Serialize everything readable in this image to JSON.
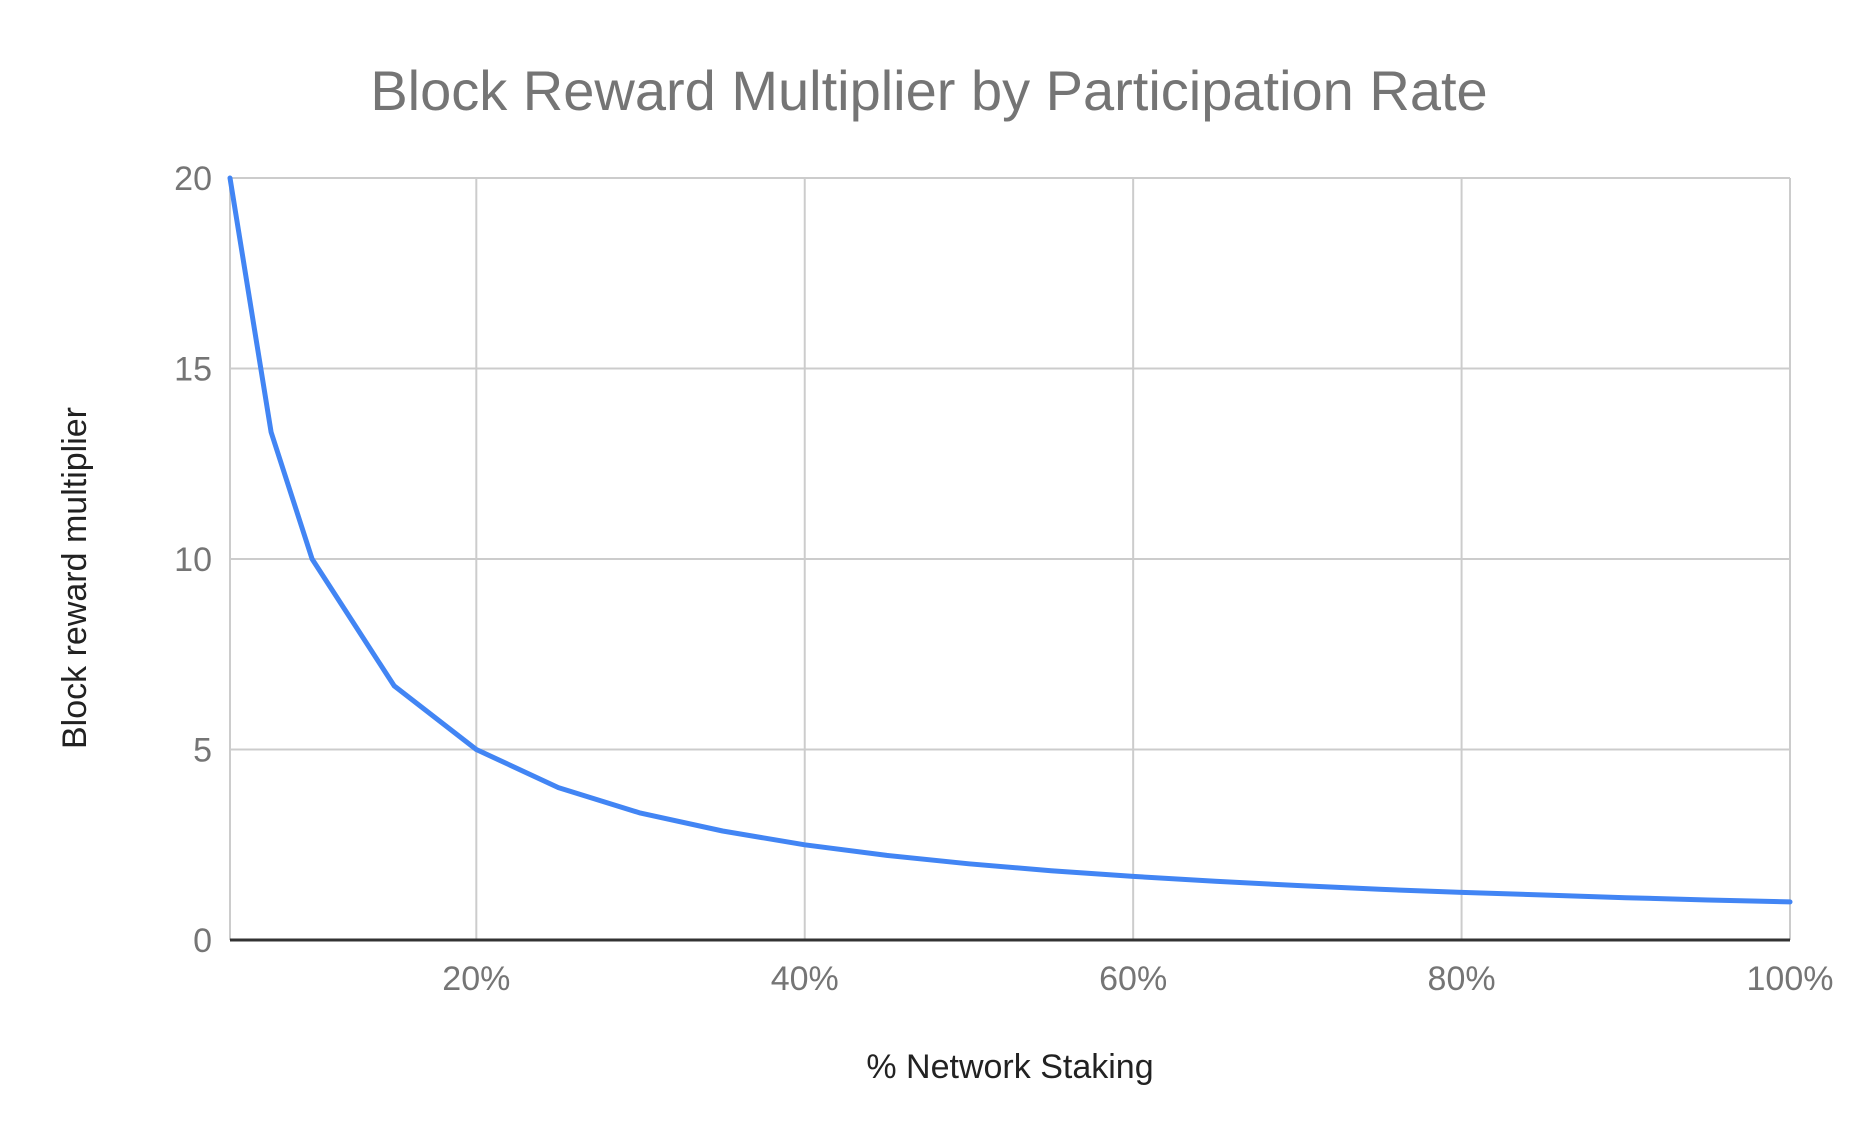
{
  "chart_data": {
    "type": "line",
    "title": "Block Reward Multiplier by Participation Rate",
    "xlabel": "% Network Staking",
    "ylabel": "Block reward multiplier",
    "x_unit": "percent",
    "xlim": [
      5,
      100
    ],
    "ylim": [
      0,
      20
    ],
    "x_ticks": [
      20,
      40,
      60,
      80,
      100
    ],
    "x_tick_labels": [
      "20%",
      "40%",
      "60%",
      "80%",
      "100%"
    ],
    "y_ticks": [
      0,
      5,
      10,
      15,
      20
    ],
    "y_tick_labels": [
      "0",
      "5",
      "10",
      "15",
      "20"
    ],
    "grid": true,
    "legend": "none",
    "series": [
      {
        "color": "#4285F4",
        "x": [
          5,
          7.5,
          10,
          15,
          20,
          25,
          30,
          35,
          40,
          45,
          50,
          55,
          60,
          65,
          70,
          75,
          80,
          85,
          90,
          95,
          100
        ],
        "y": [
          20,
          13.33,
          10,
          6.67,
          5,
          4,
          3.33,
          2.86,
          2.5,
          2.22,
          2,
          1.82,
          1.67,
          1.54,
          1.43,
          1.33,
          1.25,
          1.18,
          1.11,
          1.05,
          1
        ]
      }
    ]
  }
}
